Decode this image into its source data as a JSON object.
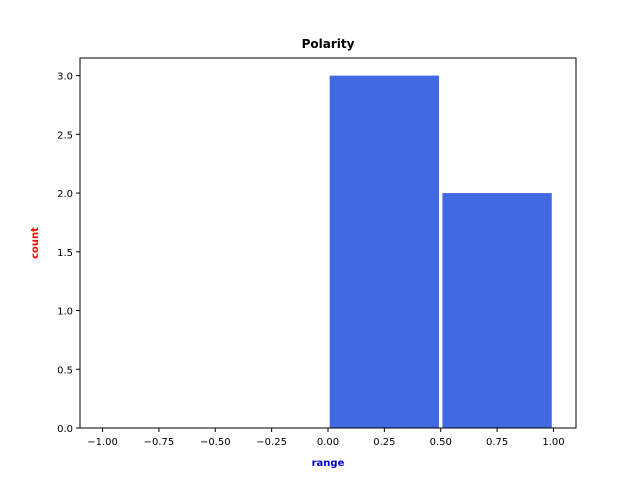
{
  "chart_data": {
    "type": "bar",
    "title": "Polarity",
    "xlabel": "range",
    "ylabel": "count",
    "bins": [
      {
        "start": -1.0,
        "end": -0.5,
        "count": 0
      },
      {
        "start": -0.5,
        "end": 0.0,
        "count": 0
      },
      {
        "start": 0.0,
        "end": 0.5,
        "count": 3
      },
      {
        "start": 0.5,
        "end": 1.0,
        "count": 2
      }
    ],
    "xlim": [
      -1.1,
      1.1
    ],
    "ylim": [
      0,
      3.15
    ],
    "xticks": [
      "−1.00",
      "−0.75",
      "−0.50",
      "−0.25",
      "0.00",
      "0.25",
      "0.50",
      "0.75",
      "1.00"
    ],
    "xtick_values": [
      -1.0,
      -0.75,
      -0.5,
      -0.25,
      0.0,
      0.25,
      0.5,
      0.75,
      1.0
    ],
    "yticks": [
      "0.0",
      "0.5",
      "1.0",
      "1.5",
      "2.0",
      "2.5",
      "3.0"
    ],
    "ytick_values": [
      0,
      0.5,
      1.0,
      1.5,
      2.0,
      2.5,
      3.0
    ],
    "grid": false,
    "colors": {
      "bar": "#4169e1",
      "xlabel": "#0000cd",
      "ylabel": "#ff0000"
    }
  }
}
